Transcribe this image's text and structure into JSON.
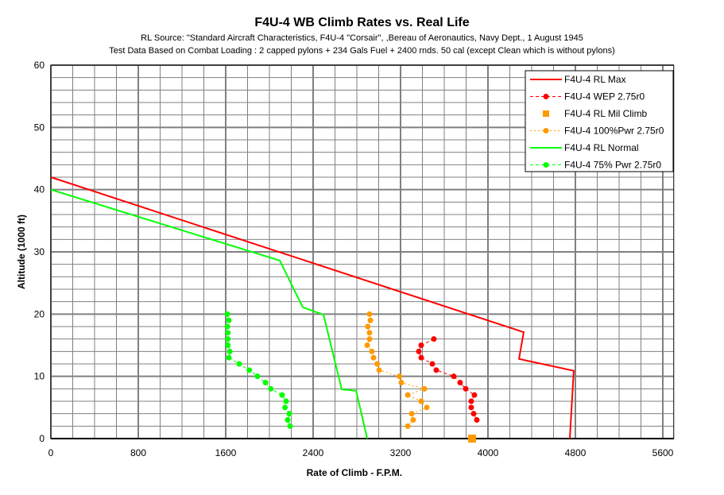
{
  "chart_data": {
    "type": "line",
    "title": "F4U-4 WB Climb Rates vs. Real Life",
    "subtitle": [
      "RL Source: \"Standard Aircraft Characteristics, F4U-4 \"Corsair\", ,Bereau of Aeronautics, Navy Dept., 1 August 1945",
      "Test Data Based on Combat Loading : 2 capped pylons + 234 Gals Fuel + 2400 rnds. 50 cal (except Clean which is without pylons)"
    ],
    "xlabel": "Rate of Climb - F.P.M.",
    "ylabel": "Altitude (1000 ft)",
    "xlim": [
      0,
      5700
    ],
    "ylim": [
      0,
      60
    ],
    "xticks": [
      "0",
      "800",
      "1600",
      "2400",
      "3200",
      "4000",
      "4800",
      "5600"
    ],
    "yticks": [
      "0",
      "10",
      "20",
      "30",
      "40",
      "50",
      "60"
    ],
    "grid": true,
    "legend_position": "top-right",
    "series": [
      {
        "name": "F4U-4 RL Max",
        "color": "#ff0000",
        "style": "solid",
        "marker": "none",
        "x": [
          0,
          4327,
          4284,
          4785,
          4749
        ],
        "y": [
          42,
          17.1,
          12.8,
          10.9,
          0
        ]
      },
      {
        "name": "F4U-4 WEP 2.75r0",
        "color": "#ff0000",
        "style": "dashed",
        "marker": "circle",
        "x": [
          3505,
          3389,
          3367,
          3389,
          3491,
          3527,
          3687,
          3745,
          3796,
          3876,
          3847,
          3847,
          3869,
          3898
        ],
        "y": [
          16,
          15,
          14,
          13,
          12,
          11,
          10,
          9,
          8,
          7,
          6,
          5,
          4,
          3
        ]
      },
      {
        "name": "F4U-4 RL Mil Climb",
        "color": "#ff9900",
        "style": "none",
        "marker": "square",
        "x": [
          3855
        ],
        "y": [
          0
        ]
      },
      {
        "name": "F4U-4 100%Pwr 2.75r0",
        "color": "#ff9900",
        "style": "dotted",
        "marker": "circle",
        "x": [
          2916,
          2924,
          2900,
          2916,
          2916,
          2895,
          2938,
          2953,
          2986,
          3004,
          3190,
          3207,
          3418,
          3266,
          3389,
          3440,
          3302,
          3316,
          3266
        ],
        "y": [
          20,
          19,
          18,
          17,
          16,
          15,
          14,
          13,
          12,
          11,
          10,
          9,
          8,
          7,
          6,
          5,
          4,
          3,
          2
        ]
      },
      {
        "name": "F4U-4 RL Normal",
        "color": "#00ff00",
        "style": "solid",
        "marker": "none",
        "x": [
          0,
          2095,
          2305,
          2495,
          2662,
          2793,
          2895
        ],
        "y": [
          40,
          28.6,
          21.1,
          19.9,
          7.9,
          7.7,
          0
        ]
      },
      {
        "name": "F4U-4 75% Pwr 2.75r0",
        "color": "#00ff00",
        "style": "dashed",
        "marker": "circle",
        "x": [
          1615,
          1629,
          1615,
          1620,
          1620,
          1620,
          1637,
          1629,
          1724,
          1816,
          1891,
          1964,
          2012,
          2116,
          2153,
          2143,
          2182,
          2167,
          2189
        ],
        "y": [
          20,
          19,
          18,
          17,
          16,
          15,
          14,
          13,
          12,
          11,
          10,
          9,
          8,
          7,
          6,
          5,
          4,
          3,
          2
        ]
      }
    ]
  }
}
